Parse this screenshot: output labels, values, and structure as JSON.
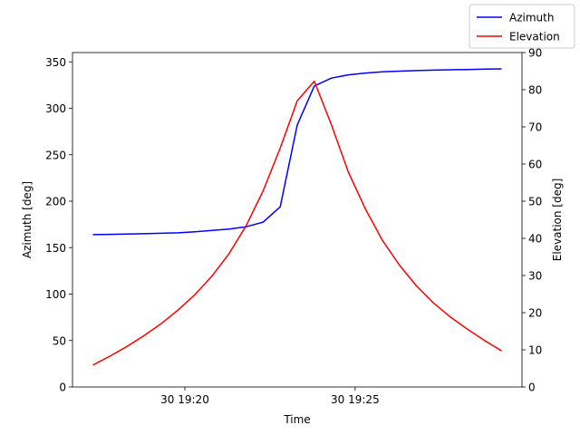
{
  "chart_data": {
    "type": "line",
    "xlabel": "Time",
    "ylabel_left": "Azimuth [deg]",
    "ylabel_right": "Elevation [deg]",
    "x_ticks": [
      "30 19:20",
      "30 19:25"
    ],
    "x_tick_minutes": [
      20,
      25
    ],
    "xlim_minutes": [
      16.7,
      29.9
    ],
    "ylim_left": [
      0,
      360
    ],
    "ylim_right": [
      0,
      90
    ],
    "yticks_left": [
      0,
      50,
      100,
      150,
      200,
      250,
      300,
      350
    ],
    "yticks_right": [
      0,
      10,
      20,
      30,
      40,
      50,
      60,
      70,
      80,
      90
    ],
    "legend_position": "top-right",
    "grid": false,
    "x_minutes": [
      17.3,
      17.8,
      18.3,
      18.8,
      19.3,
      19.8,
      20.3,
      20.8,
      21.3,
      21.8,
      22.3,
      22.8,
      23.3,
      23.8,
      24.3,
      24.8,
      25.3,
      25.8,
      26.3,
      26.8,
      27.3,
      27.8,
      28.3,
      28.8,
      29.3
    ],
    "series": [
      {
        "name": "Azimuth",
        "axis": "left",
        "color": "#0000ff",
        "values": [
          164,
          164.3,
          164.6,
          165,
          165.5,
          166,
          167,
          168.5,
          170,
          172.5,
          177.5,
          194,
          282,
          324,
          332.5,
          336,
          338,
          339.2,
          340,
          340.6,
          341.1,
          341.5,
          341.8,
          342.1,
          342.4
        ]
      },
      {
        "name": "Elevation",
        "axis": "right",
        "color": "#ff0000",
        "values": [
          5.9,
          8.3,
          10.9,
          13.8,
          17.0,
          20.7,
          24.9,
          29.9,
          35.9,
          43.4,
          52.8,
          64.3,
          77.0,
          82.3,
          70.6,
          57.8,
          47.9,
          39.5,
          32.8,
          27.2,
          22.6,
          18.8,
          15.5,
          12.5,
          9.7
        ]
      }
    ]
  }
}
